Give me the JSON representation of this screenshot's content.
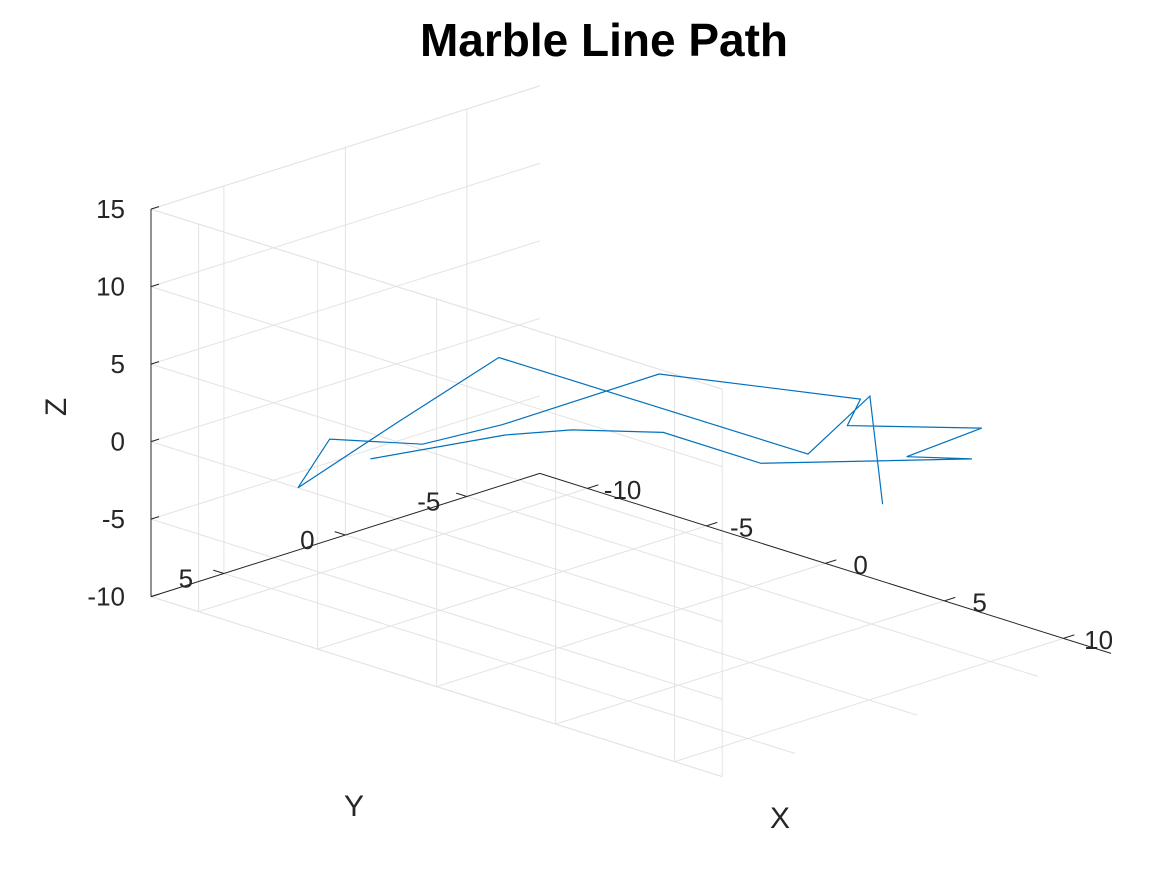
{
  "chart_data": {
    "type": "line",
    "projection": "3d",
    "title": "Marble Line Path",
    "xlabel": "X",
    "ylabel": "Y",
    "zlabel": "Z",
    "xlim": [
      -12,
      12
    ],
    "ylim": [
      -8,
      8
    ],
    "zlim": [
      -10,
      15
    ],
    "grid": true,
    "x_ticks": [
      -10,
      -5,
      0,
      5,
      10
    ],
    "y_ticks": [
      -5,
      0,
      5
    ],
    "z_ticks": [
      -10,
      -5,
      0,
      5,
      10,
      15
    ],
    "x_tick_labels": [
      "-10",
      "-5",
      "0",
      "5",
      "10"
    ],
    "y_tick_labels": [
      "-5",
      "0",
      "5"
    ],
    "z_tick_labels": [
      "-10",
      "-5",
      "0",
      "5",
      "10",
      "15"
    ],
    "series": [
      {
        "color": "#0072bd",
        "x": [
          -8.6,
          -5.8,
          -3.5,
          -1.2,
          2.7,
          8.4,
          7.5,
          7.9,
          4.9,
          2.8,
          -2.8,
          -4.9,
          -5.8,
          -4.9,
          -4.6,
          -2.5,
          2.0,
          10.5,
          13.0,
          11.9
        ],
        "y": [
          2.3,
          -0.5,
          -1.0,
          -2.5,
          -2.7,
          -5.8,
          -4.0,
          -6.7,
          -4.1,
          -6.7,
          -3.9,
          0.5,
          2.9,
          7.6,
          9.2,
          7.2,
          7.4,
          3.0,
          2.9,
          1.3
        ],
        "z": [
          -2.3,
          -0.8,
          0.4,
          0.6,
          0.4,
          1.9,
          2.5,
          3.2,
          3.2,
          2.6,
          2.9,
          0.8,
          0.3,
          3.4,
          1.2,
          5.4,
          11.9,
          7.6,
          12.5,
          4.2
        ]
      }
    ]
  }
}
